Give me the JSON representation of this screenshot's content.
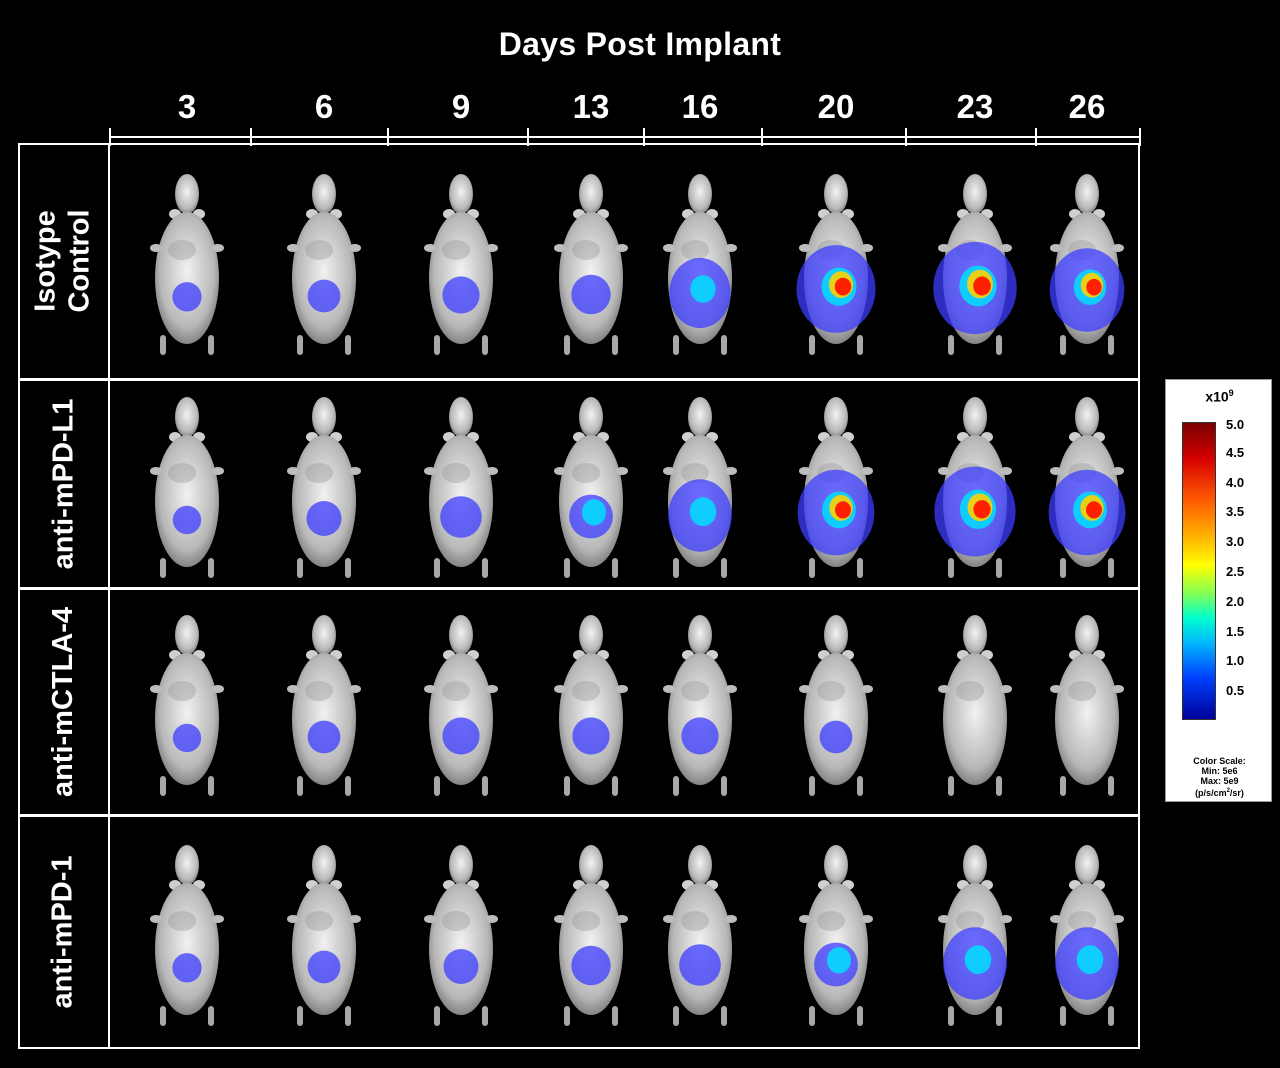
{
  "title": "Days Post Implant",
  "days": [
    "3",
    "6",
    "9",
    "13",
    "16",
    "20",
    "23",
    "26"
  ],
  "rows": [
    {
      "label": "Isotype\nControl"
    },
    {
      "label": "anti-mPD-L1"
    },
    {
      "label": "anti-mCTLA-4"
    },
    {
      "label": "anti-mPD-1"
    }
  ],
  "colorbar": {
    "unit_base": "x10",
    "unit_exp": "9",
    "ticks": [
      "5.0",
      "4.5",
      "4.0",
      "3.5",
      "3.0",
      "2.5",
      "2.0",
      "1.5",
      "1.0",
      "0.5"
    ],
    "scale_title": "Color Scale:",
    "min_label": "Min: 5e6",
    "max_label": "Max: 5e9",
    "units_label": "(p/s/cm",
    "units_exp": "2",
    "units_tail": "/sr)"
  },
  "signal_levels": [
    [
      0.12,
      0.2,
      0.3,
      0.35,
      0.5,
      0.9,
      1.0,
      0.8
    ],
    [
      0.1,
      0.25,
      0.4,
      0.45,
      0.55,
      0.85,
      0.95,
      0.85
    ],
    [
      0.1,
      0.2,
      0.3,
      0.3,
      0.3,
      0.2,
      0.0,
      0.0
    ],
    [
      0.12,
      0.2,
      0.25,
      0.35,
      0.4,
      0.45,
      0.55,
      0.55
    ]
  ],
  "colors": {
    "background": "#000000",
    "frame": "#ffffff",
    "signal_low": "#3c3cff",
    "signal_mid": "#00e0ff",
    "signal_high": "#ff2000"
  }
}
